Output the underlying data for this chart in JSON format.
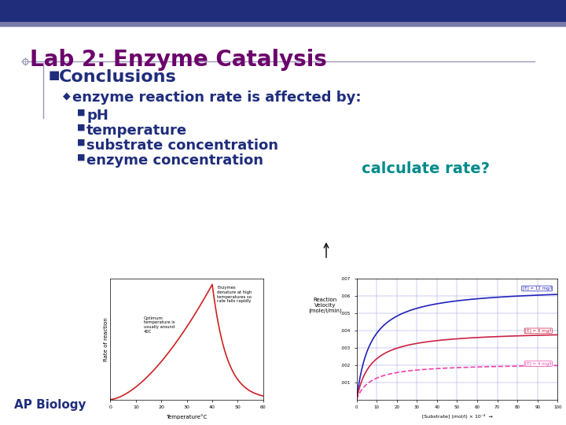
{
  "title": "Lab 2: Enzyme Catalysis",
  "title_color": "#6B006B",
  "title_fontsize": 20,
  "header_bar_color": "#1F2D7B",
  "header_accent_color": "#7B7BAA",
  "bg_color": "#FFFFFF",
  "bullet1": "Conclusions",
  "bullet1_color": "#1F2D7B",
  "bullet1_fontsize": 16,
  "bullet2": "enzyme reaction rate is affected by:",
  "bullet2_color": "#1F2D7B",
  "bullet2_fontsize": 13,
  "sub_bullets": [
    "pH",
    "temperature",
    "substrate concentration",
    "enzyme concentration"
  ],
  "sub_bullet_color": "#1F2D7B",
  "sub_bullet_fontsize": 13,
  "calc_text": "calculate rate?",
  "calc_color": "#008B8B",
  "calc_fontsize": 14,
  "ap_text": "AP Biology",
  "ap_color": "#1F2D7B",
  "ap_fontsize": 11,
  "underline_color": "#9999BB",
  "left_bar_color": "#9999BB",
  "compass_color": "#9999BB"
}
